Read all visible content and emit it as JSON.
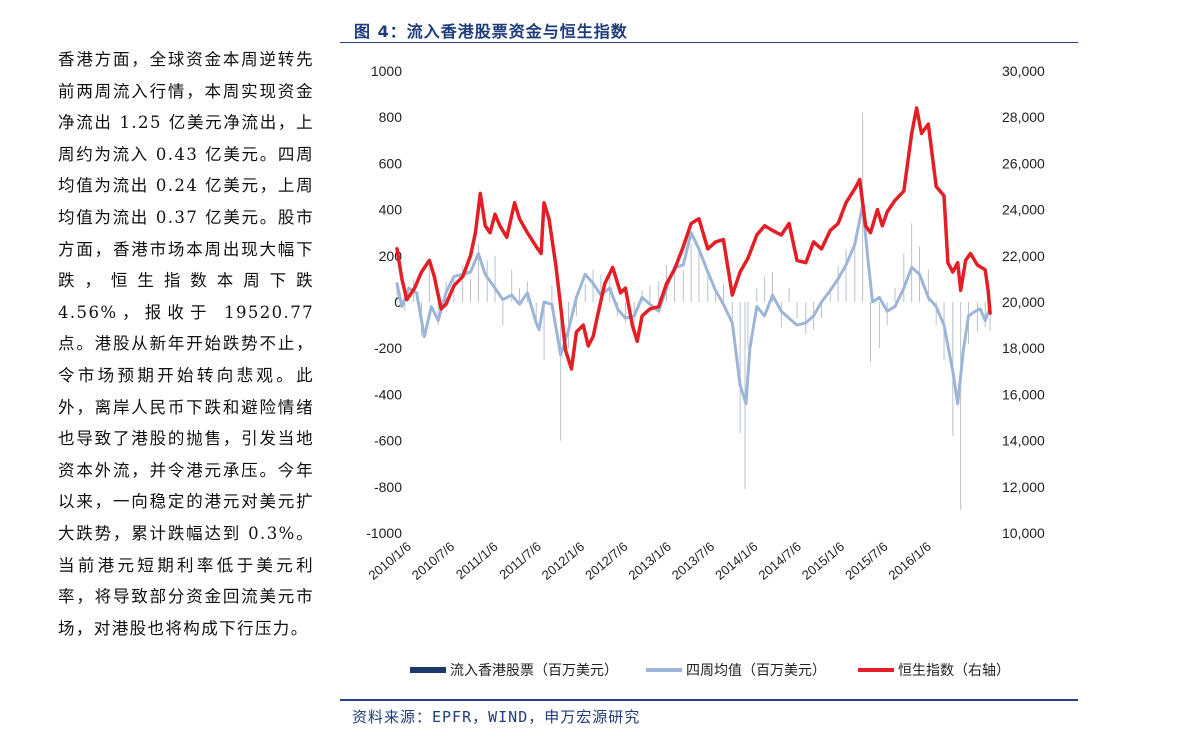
{
  "figure": {
    "title": "图 4：流入香港股票资金与恒生指数",
    "source": "资料来源：EPFR，WIND，申万宏源研究"
  },
  "body_text": "香港方面，全球资金本周逆转先前两周流入行情，本周实现资金净流出 1.25 亿美元净流出，上周约为流入 0.43 亿美元。四周均值为流出 0.24 亿美元，上周均值为流出 0.37 亿美元。股市方面，香港市场本周出现大幅下跌，恒生指数本周下跌 4.56%，报收于 19520.77 点。港股从新年开始跌势不止，令市场预期开始转向悲观。此外，离岸人民币下跌和避险情绪也导致了港股的抛售，引发当地资本外流，并令港元承压。今年以来，一向稳定的港元对美元扩大跌势，累计跌幅达到 0.3%。当前港元短期利率低于美元利率，将导致部分资金回流美元市场，对港股也将构成下行压力。",
  "chart_data": {
    "type": "line",
    "title": "",
    "x_tick_labels": [
      "2010/1/6",
      "2010/7/6",
      "2011/1/6",
      "2011/7/6",
      "2012/1/6",
      "2012/7/6",
      "2013/1/6",
      "2013/7/6",
      "2014/1/6",
      "2014/7/6",
      "2015/1/6",
      "2015/7/6",
      "2016/1/6"
    ],
    "x_range": [
      2010.0,
      2016.1
    ],
    "y_left": {
      "ylim": [
        -1000,
        1000
      ],
      "ticks": [
        "1000",
        "800",
        "600",
        "400",
        "200",
        "0",
        "-200",
        "-400",
        "-600",
        "-800",
        "-1000"
      ]
    },
    "y_right": {
      "ylim": [
        10000,
        30000
      ],
      "ticks": [
        "30,000",
        "28,000",
        "26,000",
        "24,000",
        "22,000",
        "20,000",
        "18,000",
        "16,000",
        "14,000",
        "12,000",
        "10,000"
      ]
    },
    "series": [
      {
        "name": "流入香港股票（百万美元）",
        "type": "bar",
        "axis": "left",
        "color": "#1b3a6b",
        "points": [
          [
            2010.0,
            80
          ],
          [
            2010.08,
            -40
          ],
          [
            2010.17,
            100
          ],
          [
            2010.25,
            -150
          ],
          [
            2010.33,
            150
          ],
          [
            2010.42,
            -100
          ],
          [
            2010.5,
            90
          ],
          [
            2010.58,
            120
          ],
          [
            2010.67,
            160
          ],
          [
            2010.75,
            100
          ],
          [
            2010.83,
            250
          ],
          [
            2010.92,
            180
          ],
          [
            2011.0,
            200
          ],
          [
            2011.08,
            -100
          ],
          [
            2011.17,
            140
          ],
          [
            2011.25,
            60
          ],
          [
            2011.33,
            90
          ],
          [
            2011.42,
            -90
          ],
          [
            2011.5,
            -250
          ],
          [
            2011.58,
            70
          ],
          [
            2011.67,
            -600
          ],
          [
            2011.75,
            -200
          ],
          [
            2011.83,
            -60
          ],
          [
            2011.92,
            80
          ],
          [
            2012.0,
            140
          ],
          [
            2012.08,
            120
          ],
          [
            2012.17,
            110
          ],
          [
            2012.25,
            -60
          ],
          [
            2012.33,
            -90
          ],
          [
            2012.42,
            -140
          ],
          [
            2012.5,
            50
          ],
          [
            2012.58,
            70
          ],
          [
            2012.67,
            90
          ],
          [
            2012.75,
            160
          ],
          [
            2012.83,
            140
          ],
          [
            2012.92,
            140
          ],
          [
            2013.0,
            250
          ],
          [
            2013.08,
            240
          ],
          [
            2013.17,
            110
          ],
          [
            2013.25,
            60
          ],
          [
            2013.33,
            80
          ],
          [
            2013.42,
            -90
          ],
          [
            2013.5,
            -570
          ],
          [
            2013.55,
            -810
          ],
          [
            2013.58,
            -200
          ],
          [
            2013.67,
            60
          ],
          [
            2013.75,
            110
          ],
          [
            2013.83,
            130
          ],
          [
            2013.92,
            -110
          ],
          [
            2014.0,
            60
          ],
          [
            2014.08,
            -70
          ],
          [
            2014.17,
            -140
          ],
          [
            2014.25,
            -120
          ],
          [
            2014.33,
            -70
          ],
          [
            2014.42,
            50
          ],
          [
            2014.5,
            160
          ],
          [
            2014.58,
            230
          ],
          [
            2014.67,
            250
          ],
          [
            2014.75,
            820
          ],
          [
            2014.83,
            -260
          ],
          [
            2014.92,
            -200
          ],
          [
            2015.0,
            -100
          ],
          [
            2015.08,
            60
          ],
          [
            2015.17,
            210
          ],
          [
            2015.25,
            340
          ],
          [
            2015.33,
            240
          ],
          [
            2015.42,
            140
          ],
          [
            2015.5,
            -100
          ],
          [
            2015.58,
            -250
          ],
          [
            2015.67,
            -580
          ],
          [
            2015.75,
            -900
          ],
          [
            2015.83,
            -180
          ],
          [
            2015.92,
            -130
          ],
          [
            2016.0,
            -110
          ],
          [
            2016.05,
            -125
          ]
        ]
      },
      {
        "name": "四周均值（百万美元）",
        "type": "line",
        "axis": "left",
        "color": "#9db5d8",
        "points": [
          [
            2010.0,
            80
          ],
          [
            2010.05,
            -20
          ],
          [
            2010.12,
            60
          ],
          [
            2010.2,
            40
          ],
          [
            2010.28,
            -150
          ],
          [
            2010.35,
            -20
          ],
          [
            2010.42,
            -80
          ],
          [
            2010.5,
            40
          ],
          [
            2010.58,
            110
          ],
          [
            2010.67,
            120
          ],
          [
            2010.75,
            130
          ],
          [
            2010.83,
            210
          ],
          [
            2010.9,
            120
          ],
          [
            2011.0,
            60
          ],
          [
            2011.08,
            10
          ],
          [
            2011.17,
            30
          ],
          [
            2011.25,
            -10
          ],
          [
            2011.33,
            40
          ],
          [
            2011.42,
            -90
          ],
          [
            2011.45,
            -120
          ],
          [
            2011.5,
            0
          ],
          [
            2011.58,
            -10
          ],
          [
            2011.67,
            -230
          ],
          [
            2011.75,
            -120
          ],
          [
            2011.83,
            20
          ],
          [
            2011.92,
            120
          ],
          [
            2012.0,
            80
          ],
          [
            2012.08,
            30
          ],
          [
            2012.17,
            60
          ],
          [
            2012.25,
            -30
          ],
          [
            2012.33,
            -70
          ],
          [
            2012.42,
            -60
          ],
          [
            2012.5,
            20
          ],
          [
            2012.58,
            -10
          ],
          [
            2012.67,
            -40
          ],
          [
            2012.75,
            60
          ],
          [
            2012.83,
            150
          ],
          [
            2012.92,
            160
          ],
          [
            2013.0,
            300
          ],
          [
            2013.08,
            230
          ],
          [
            2013.17,
            130
          ],
          [
            2013.25,
            50
          ],
          [
            2013.33,
            -10
          ],
          [
            2013.42,
            -90
          ],
          [
            2013.5,
            -360
          ],
          [
            2013.56,
            -440
          ],
          [
            2013.6,
            -200
          ],
          [
            2013.67,
            -20
          ],
          [
            2013.75,
            -60
          ],
          [
            2013.83,
            30
          ],
          [
            2013.92,
            -40
          ],
          [
            2014.0,
            -70
          ],
          [
            2014.08,
            -100
          ],
          [
            2014.17,
            -90
          ],
          [
            2014.25,
            -60
          ],
          [
            2014.33,
            0
          ],
          [
            2014.42,
            50
          ],
          [
            2014.5,
            100
          ],
          [
            2014.58,
            160
          ],
          [
            2014.67,
            250
          ],
          [
            2014.75,
            420
          ],
          [
            2014.8,
            200
          ],
          [
            2014.85,
            0
          ],
          [
            2014.92,
            20
          ],
          [
            2015.0,
            -40
          ],
          [
            2015.08,
            -20
          ],
          [
            2015.17,
            60
          ],
          [
            2015.25,
            150
          ],
          [
            2015.33,
            120
          ],
          [
            2015.42,
            20
          ],
          [
            2015.5,
            -20
          ],
          [
            2015.58,
            -100
          ],
          [
            2015.67,
            -300
          ],
          [
            2015.72,
            -440
          ],
          [
            2015.78,
            -200
          ],
          [
            2015.83,
            -60
          ],
          [
            2015.9,
            -40
          ],
          [
            2015.95,
            -30
          ],
          [
            2016.0,
            -80
          ],
          [
            2016.05,
            -24
          ]
        ]
      },
      {
        "name": "恒生指数（右轴）",
        "type": "line",
        "axis": "right",
        "color": "#e31e24",
        "points": [
          [
            2010.0,
            22300
          ],
          [
            2010.05,
            21000
          ],
          [
            2010.1,
            20100
          ],
          [
            2010.18,
            20600
          ],
          [
            2010.25,
            21300
          ],
          [
            2010.33,
            21800
          ],
          [
            2010.38,
            21100
          ],
          [
            2010.45,
            19700
          ],
          [
            2010.5,
            19900
          ],
          [
            2010.58,
            20700
          ],
          [
            2010.67,
            21100
          ],
          [
            2010.75,
            22000
          ],
          [
            2010.8,
            23000
          ],
          [
            2010.85,
            24700
          ],
          [
            2010.9,
            23300
          ],
          [
            2010.95,
            23000
          ],
          [
            2011.0,
            23800
          ],
          [
            2011.05,
            23300
          ],
          [
            2011.12,
            22800
          ],
          [
            2011.2,
            24300
          ],
          [
            2011.25,
            23600
          ],
          [
            2011.33,
            23000
          ],
          [
            2011.42,
            22400
          ],
          [
            2011.47,
            22100
          ],
          [
            2011.5,
            24300
          ],
          [
            2011.55,
            23600
          ],
          [
            2011.62,
            21600
          ],
          [
            2011.67,
            19800
          ],
          [
            2011.72,
            17900
          ],
          [
            2011.78,
            17100
          ],
          [
            2011.83,
            18700
          ],
          [
            2011.9,
            19000
          ],
          [
            2011.95,
            18100
          ],
          [
            2012.0,
            18500
          ],
          [
            2012.05,
            19500
          ],
          [
            2012.12,
            20800
          ],
          [
            2012.2,
            21500
          ],
          [
            2012.28,
            20400
          ],
          [
            2012.33,
            20600
          ],
          [
            2012.4,
            19000
          ],
          [
            2012.45,
            18300
          ],
          [
            2012.5,
            19400
          ],
          [
            2012.58,
            19700
          ],
          [
            2012.67,
            19800
          ],
          [
            2012.75,
            20800
          ],
          [
            2012.83,
            21400
          ],
          [
            2012.92,
            22400
          ],
          [
            2013.0,
            23400
          ],
          [
            2013.08,
            23600
          ],
          [
            2013.17,
            22300
          ],
          [
            2013.25,
            22600
          ],
          [
            2013.33,
            22700
          ],
          [
            2013.42,
            20300
          ],
          [
            2013.5,
            21300
          ],
          [
            2013.58,
            21900
          ],
          [
            2013.67,
            22900
          ],
          [
            2013.75,
            23300
          ],
          [
            2013.83,
            23100
          ],
          [
            2013.92,
            22900
          ],
          [
            2014.0,
            23400
          ],
          [
            2014.08,
            21800
          ],
          [
            2014.17,
            21700
          ],
          [
            2014.25,
            22600
          ],
          [
            2014.33,
            22300
          ],
          [
            2014.42,
            23100
          ],
          [
            2014.5,
            23400
          ],
          [
            2014.58,
            24300
          ],
          [
            2014.67,
            24900
          ],
          [
            2014.72,
            25300
          ],
          [
            2014.78,
            23300
          ],
          [
            2014.83,
            23000
          ],
          [
            2014.9,
            24000
          ],
          [
            2014.95,
            23300
          ],
          [
            2015.0,
            23900
          ],
          [
            2015.08,
            24400
          ],
          [
            2015.17,
            24800
          ],
          [
            2015.25,
            27300
          ],
          [
            2015.3,
            28400
          ],
          [
            2015.35,
            27300
          ],
          [
            2015.42,
            27700
          ],
          [
            2015.5,
            25000
          ],
          [
            2015.58,
            24600
          ],
          [
            2015.62,
            21700
          ],
          [
            2015.67,
            21300
          ],
          [
            2015.72,
            21700
          ],
          [
            2015.75,
            20500
          ],
          [
            2015.8,
            21800
          ],
          [
            2015.85,
            22100
          ],
          [
            2015.92,
            21600
          ],
          [
            2016.0,
            21400
          ],
          [
            2016.03,
            20500
          ],
          [
            2016.05,
            19520
          ]
        ]
      }
    ]
  }
}
